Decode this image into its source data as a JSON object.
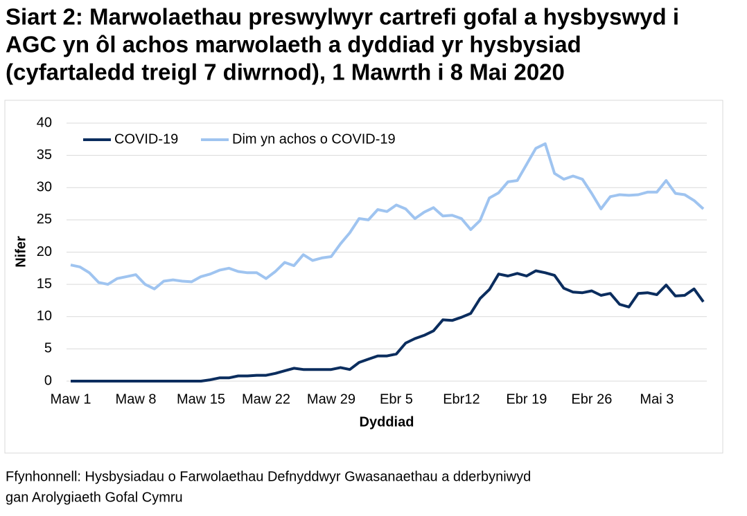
{
  "chart_data": {
    "type": "line",
    "title": [
      "Siart 2: Marwolaethau preswylwyr cartrefi gofal a hysbyswyd i",
      "AGC yn ôl achos marwolaeth a dyddiad yr hysbysiad",
      "(cyfartaledd treigl 7 diwrnod), 1 Mawrth i 8 Mai 2020"
    ],
    "x_label": "Dyddiad",
    "y_label": "Nifer",
    "source": [
      "Ffynhonnell: Hysbysiadau o Farwolaethau Defnyddwyr Gwasanaethau a dderbyniwyd",
      "gan Arolygiaeth Gofal Cymru"
    ],
    "categories": [
      "Maw 1",
      null,
      null,
      null,
      null,
      null,
      null,
      "Maw 8",
      null,
      null,
      null,
      null,
      null,
      null,
      "Maw 15",
      null,
      null,
      null,
      null,
      null,
      null,
      "Maw 22",
      null,
      null,
      null,
      null,
      null,
      null,
      "Maw 29",
      null,
      null,
      null,
      null,
      null,
      null,
      "Ebr 5",
      null,
      null,
      null,
      null,
      null,
      null,
      "Ebr12",
      null,
      null,
      null,
      null,
      null,
      null,
      "Ebr 19",
      null,
      null,
      null,
      null,
      null,
      null,
      "Ebr 26",
      null,
      null,
      null,
      null,
      null,
      null,
      "Mai 3",
      null,
      null,
      null,
      null,
      null
    ],
    "series": [
      {
        "name": "COVID-19",
        "color": "#0b2d5e",
        "values": [
          0,
          0,
          0,
          0,
          0,
          0,
          0,
          0,
          0,
          0,
          0,
          0,
          0,
          0,
          0,
          0.2,
          0.5,
          0.5,
          0.8,
          0.8,
          0.9,
          0.9,
          1.2,
          1.6,
          2.0,
          1.8,
          1.8,
          1.8,
          1.8,
          2.1,
          1.8,
          2.9,
          3.4,
          3.9,
          3.9,
          4.2,
          5.9,
          6.6,
          7.1,
          7.8,
          9.5,
          9.4,
          9.9,
          10.5,
          12.8,
          14.2,
          16.6,
          16.3,
          16.7,
          16.3,
          17.1,
          16.8,
          16.4,
          14.4,
          13.8,
          13.7,
          14.0,
          13.3,
          13.6,
          11.9,
          11.5,
          13.6,
          13.7,
          13.4,
          14.9,
          13.2,
          13.3,
          14.3,
          12.3
        ]
      },
      {
        "name": "Dim yn achos o COVID-19",
        "color": "#9fc4f0",
        "values": [
          18.0,
          17.7,
          16.8,
          15.3,
          15.0,
          15.9,
          16.2,
          16.5,
          15.0,
          14.3,
          15.5,
          15.7,
          15.5,
          15.4,
          16.2,
          16.6,
          17.2,
          17.5,
          17.0,
          16.8,
          16.8,
          15.9,
          17.0,
          18.4,
          17.9,
          19.6,
          18.7,
          19.1,
          19.3,
          21.3,
          23.0,
          25.2,
          25.0,
          26.6,
          26.3,
          27.3,
          26.7,
          25.2,
          26.2,
          26.9,
          25.6,
          25.7,
          25.2,
          23.5,
          24.9,
          28.4,
          29.2,
          30.9,
          31.1,
          33.6,
          36.1,
          36.8,
          32.2,
          31.3,
          31.8,
          31.3,
          29.1,
          26.7,
          28.6,
          28.9,
          28.8,
          28.9,
          29.3,
          29.3,
          31.1,
          29.1,
          28.9,
          28.0,
          26.7
        ]
      }
    ],
    "ylim": [
      0,
      40
    ],
    "yticks": [
      0,
      5,
      10,
      15,
      20,
      25,
      30,
      35,
      40
    ],
    "grid": true
  }
}
